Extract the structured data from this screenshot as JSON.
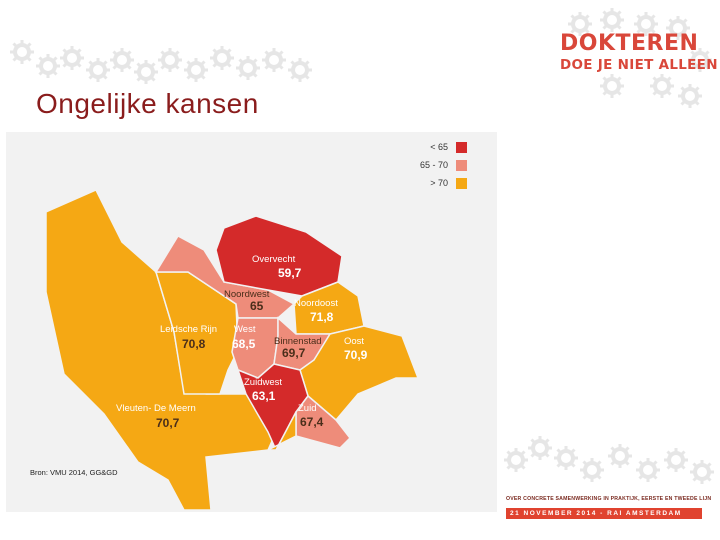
{
  "slide": {
    "title": "Ongelijke kansen",
    "source": "Bron: VMU 2014, GG&GD"
  },
  "logo": {
    "line1": "DOKTEREN",
    "line2": "DOE JE NIET ALLEEN",
    "color": "#d9473a"
  },
  "event": {
    "tagline": "OVER CONCRETE SAMENWERKING IN PRAKTIJK, EERSTE EN TWEEDE LIJN",
    "date_location": "21 NOVEMBER 2014 - RAI AMSTERDAM"
  },
  "legend": [
    {
      "label": "< 65",
      "color": "#d42a2a"
    },
    {
      "label": "65 - 70",
      "color": "#ee8c7a"
    },
    {
      "label": "> 70",
      "color": "#f5a814"
    }
  ],
  "districts": [
    {
      "name": "Overvecht",
      "value": "59,7",
      "category": "< 65"
    },
    {
      "name": "Noordwest",
      "value": "65",
      "category": "65 - 70"
    },
    {
      "name": "Noordoost",
      "value": "71,8",
      "category": "> 70"
    },
    {
      "name": "Leidsche Rijn",
      "value": "70,8",
      "category": "> 70"
    },
    {
      "name": "West",
      "value": "68,5",
      "category": "65 - 70"
    },
    {
      "name": "Binnenstad",
      "value": "69,7",
      "category": "65 - 70"
    },
    {
      "name": "Oost",
      "value": "70,9",
      "category": "> 70"
    },
    {
      "name": "Zuidwest",
      "value": "63,1",
      "category": "< 65"
    },
    {
      "name": "Zuid",
      "value": "67,4",
      "category": "65 - 70"
    },
    {
      "name": "Vleuten- De Meern",
      "value": "70,7",
      "category": "> 70"
    }
  ],
  "icons": [
    "gear-icon"
  ]
}
